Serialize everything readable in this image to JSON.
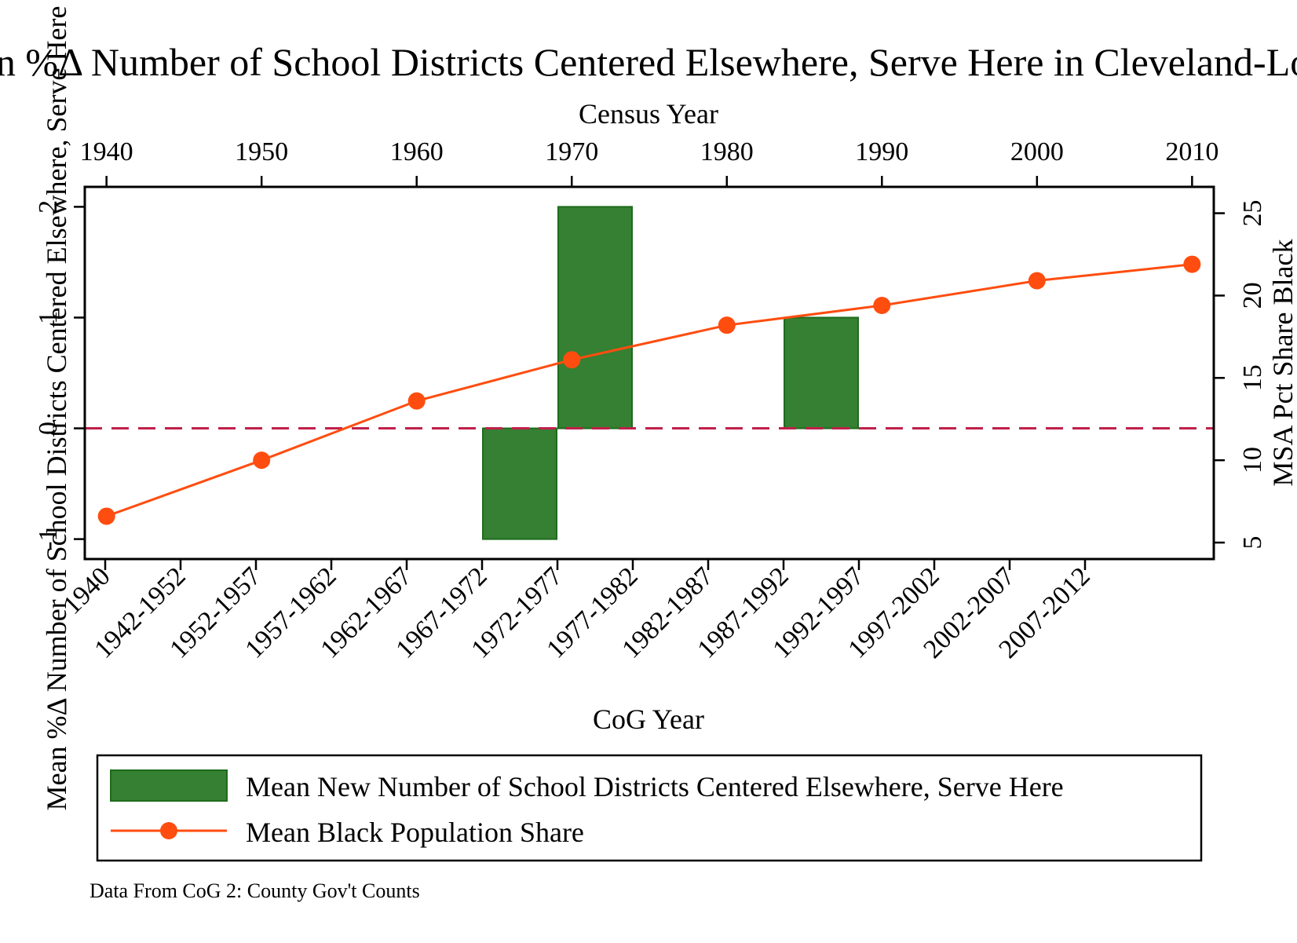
{
  "chart_data": {
    "type": "bar",
    "title": "Mean %Δ Number of School Districts Centered Elsewhere, Serve Here in Cleveland-Lorain",
    "note": "Data From CoG 2: County Gov't Counts",
    "x_bottom": {
      "label": "CoG Year",
      "categories": [
        "1940",
        "1942-1952",
        "1952-1957",
        "1957-1962",
        "1962-1967",
        "1967-1972",
        "1972-1977",
        "1977-1982",
        "1982-1987",
        "1987-1992",
        "1992-1997",
        "1997-2002",
        "2002-2007",
        "2007-2012"
      ]
    },
    "x_top": {
      "label": "Census Year",
      "ticks": [
        1940,
        1950,
        1960,
        1970,
        1980,
        1990,
        2000,
        2010
      ],
      "range": [
        1938.6,
        2011.4
      ]
    },
    "y_left": {
      "label": "Mean %Δ Number of School Districts Centered Elsewhere, Serve Here",
      "ticks": [
        -1,
        0,
        1,
        2
      ],
      "range": [
        -1.18,
        2.18
      ]
    },
    "y_right": {
      "label": "MSA Pct Share Black",
      "ticks": [
        5,
        10,
        15,
        20,
        25
      ],
      "range": [
        4.0,
        26.6
      ]
    },
    "reference_line": {
      "y": 0,
      "style": "dashed",
      "color": "#c0204a"
    },
    "series": [
      {
        "name": "Mean New Number of School Districts Centered Elsewhere, Serve Here",
        "kind": "bar",
        "axis": "left",
        "color": "#358032",
        "bars": [
          {
            "category": "1967-1972",
            "value": -1.0
          },
          {
            "category": "1972-1977",
            "value": 2.0
          },
          {
            "category": "1987-1992",
            "value": 1.0
          }
        ]
      },
      {
        "name": "Mean Black Population Share",
        "kind": "line",
        "axis": "right",
        "color": "#ff4d0f",
        "points": [
          {
            "x": 1940,
            "y": 6.6
          },
          {
            "x": 1950,
            "y": 10.0
          },
          {
            "x": 1960,
            "y": 13.6
          },
          {
            "x": 1970,
            "y": 16.1
          },
          {
            "x": 1980,
            "y": 18.2
          },
          {
            "x": 1990,
            "y": 19.4
          },
          {
            "x": 2000,
            "y": 20.9
          },
          {
            "x": 2010,
            "y": 21.9
          }
        ]
      }
    ],
    "grid": false,
    "legend_position": "bottom"
  }
}
